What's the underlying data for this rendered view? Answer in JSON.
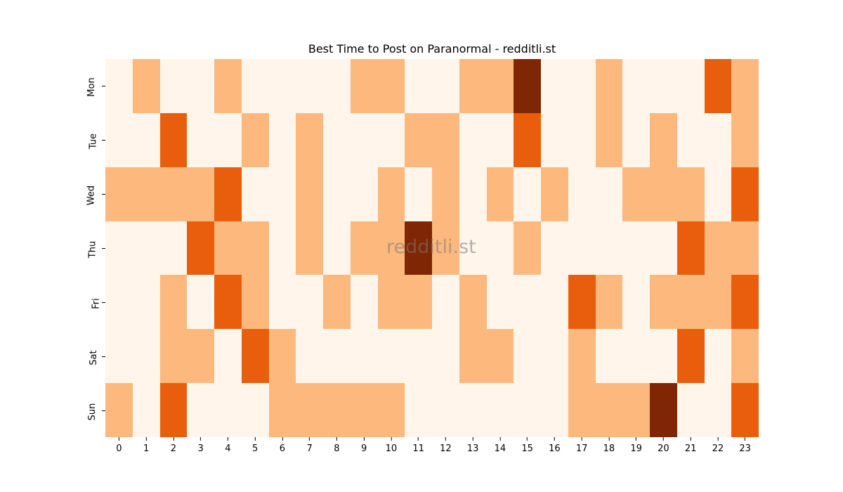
{
  "chart_data": {
    "type": "heatmap",
    "title": "Best Time to Post on Paranormal - redditli.st",
    "xlabel": "",
    "ylabel": "",
    "x_categories": [
      "0",
      "1",
      "2",
      "3",
      "4",
      "5",
      "6",
      "7",
      "8",
      "9",
      "10",
      "11",
      "12",
      "13",
      "14",
      "15",
      "16",
      "17",
      "18",
      "19",
      "20",
      "21",
      "22",
      "23"
    ],
    "y_categories": [
      "Mon",
      "Tue",
      "Wed",
      "Thu",
      "Fri",
      "Sat",
      "Sun"
    ],
    "colormap": "Oranges",
    "level_colors": [
      "#fff5eb",
      "#fdb97d",
      "#e95e0d",
      "#7f2704"
    ],
    "values": [
      [
        0,
        1,
        0,
        0,
        1,
        0,
        0,
        0,
        0,
        1,
        1,
        0,
        0,
        1,
        1,
        3,
        0,
        0,
        1,
        0,
        0,
        0,
        2,
        1
      ],
      [
        0,
        0,
        2,
        0,
        0,
        1,
        0,
        1,
        0,
        0,
        0,
        1,
        1,
        0,
        0,
        2,
        0,
        0,
        1,
        0,
        1,
        0,
        0,
        1
      ],
      [
        1,
        1,
        1,
        1,
        2,
        0,
        0,
        1,
        0,
        0,
        1,
        0,
        1,
        0,
        1,
        0,
        1,
        0,
        0,
        1,
        1,
        1,
        0,
        2
      ],
      [
        0,
        0,
        0,
        2,
        1,
        1,
        0,
        1,
        0,
        1,
        1,
        3,
        1,
        0,
        0,
        1,
        0,
        0,
        0,
        0,
        0,
        2,
        1,
        1
      ],
      [
        0,
        0,
        1,
        0,
        2,
        1,
        0,
        0,
        1,
        0,
        1,
        1,
        0,
        1,
        0,
        0,
        0,
        2,
        1,
        0,
        1,
        1,
        1,
        2
      ],
      [
        0,
        0,
        1,
        1,
        0,
        2,
        1,
        0,
        0,
        0,
        0,
        0,
        0,
        1,
        1,
        0,
        0,
        1,
        0,
        0,
        0,
        2,
        0,
        1
      ],
      [
        1,
        0,
        2,
        0,
        0,
        0,
        1,
        1,
        1,
        1,
        1,
        0,
        0,
        0,
        0,
        0,
        0,
        1,
        1,
        1,
        3,
        0,
        0,
        2
      ]
    ],
    "grid": false,
    "legend": "none",
    "watermark": "redditli.st"
  }
}
